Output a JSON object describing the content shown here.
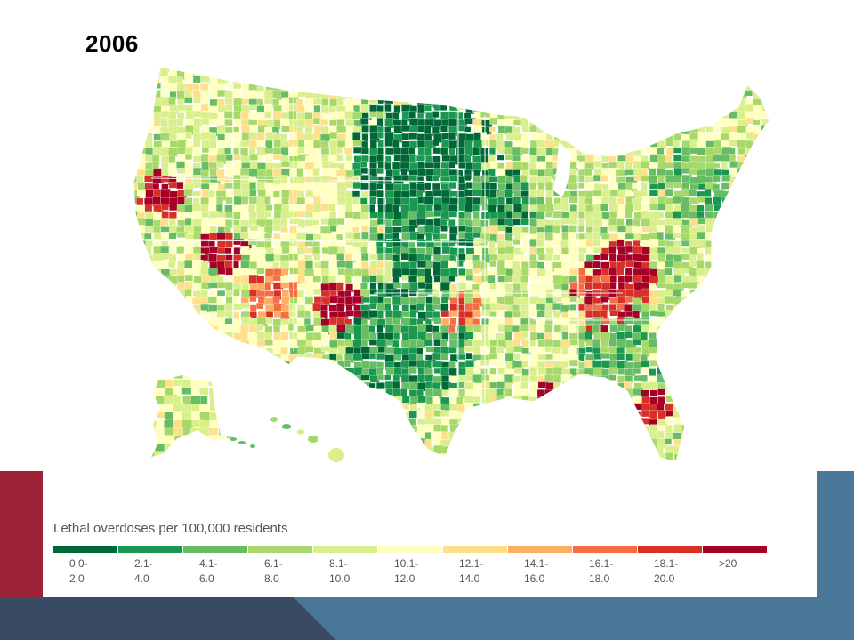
{
  "slide": {
    "title": "2006"
  },
  "legend": {
    "title": "Lethal overdoses per 100,000 residents",
    "bins": [
      {
        "line1": "0.0-",
        "line2": "2.0",
        "color": "#006837"
      },
      {
        "line1": "2.1-",
        "line2": "4.0",
        "color": "#1a9850"
      },
      {
        "line1": "4.1-",
        "line2": "6.0",
        "color": "#66bd63"
      },
      {
        "line1": "6.1-",
        "line2": "8.0",
        "color": "#a6d96a"
      },
      {
        "line1": "8.1-",
        "line2": "10.0",
        "color": "#d9ef8b"
      },
      {
        "line1": "10.1-",
        "line2": "12.0",
        "color": "#ffffbf"
      },
      {
        "line1": "12.1-",
        "line2": "14.0",
        "color": "#fee08b"
      },
      {
        "line1": "14.1-",
        "line2": "16.0",
        "color": "#fdae61"
      },
      {
        "line1": "16.1-",
        "line2": "18.0",
        "color": "#f46d43"
      },
      {
        "line1": "18.1-",
        "line2": "20.0",
        "color": "#d73027"
      },
      {
        "line1": ">20",
        "line2": "",
        "color": "#a50026"
      }
    ]
  },
  "colors": {
    "accent_red": "#9b2335",
    "accent_navy": "#3a4a63",
    "accent_blue": "#4b7898"
  }
}
